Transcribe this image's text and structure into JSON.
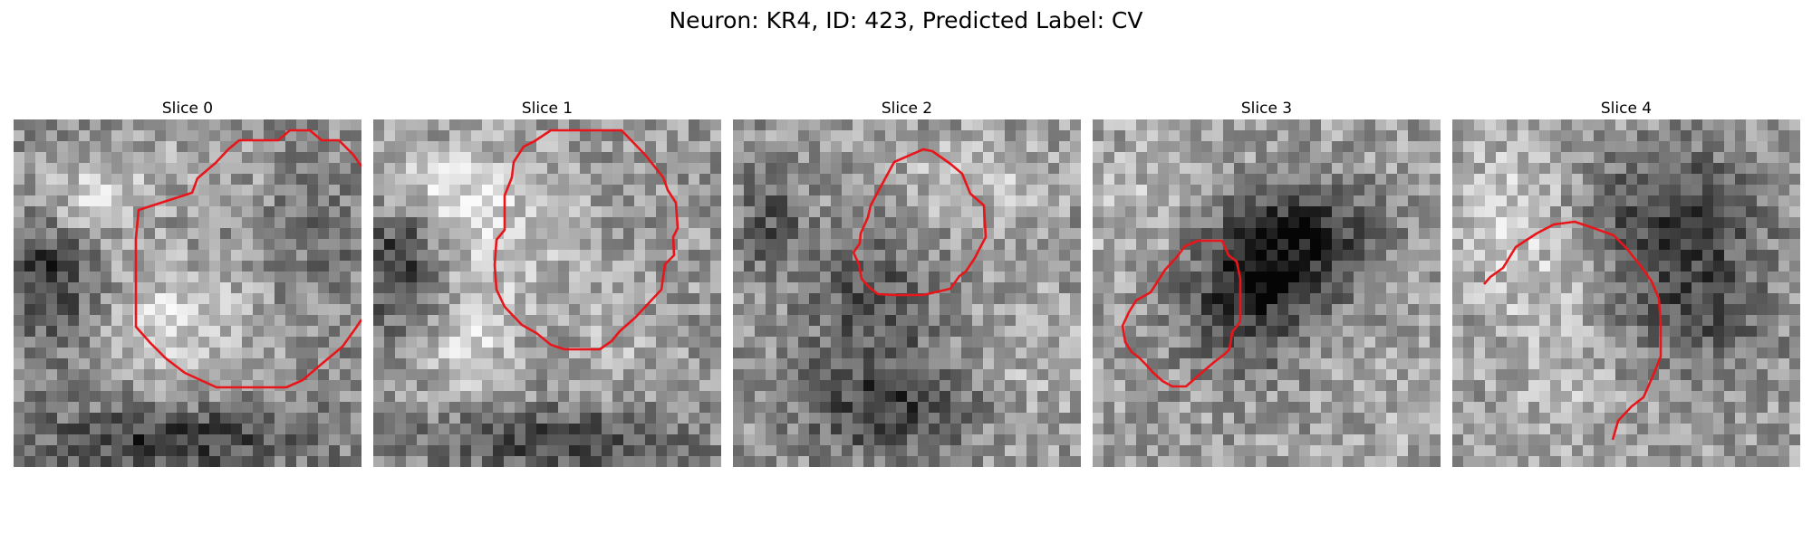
{
  "figure": {
    "title": "Neuron: KR4, ID: 423, Predicted Label: CV",
    "contour_color": "#e8161b",
    "image_colormap": "grayscale"
  },
  "slices": [
    {
      "title": "Slice 0"
    },
    {
      "title": "Slice 1"
    },
    {
      "title": "Slice 2"
    },
    {
      "title": "Slice 3"
    },
    {
      "title": "Slice 4"
    }
  ]
}
